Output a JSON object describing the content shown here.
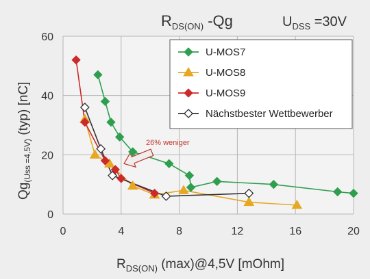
{
  "chart_data": {
    "type": "scatter",
    "title_main": "R",
    "title_sub": "DS(ON)",
    "title_rest": " -Qg",
    "udss_main": "U",
    "udss_sub": "DSS",
    "udss_rest": " =30V",
    "xlabel_main": "R",
    "xlabel_sub": "DS(ON)",
    "xlabel_rest": " (max)@4,5V [mOhm]",
    "ylabel_main": "Qg",
    "ylabel_sub": "(Uss =4,5V)",
    "ylabel_rest": " (typ) [nC]",
    "xlim": [
      0,
      20
    ],
    "ylim": [
      0,
      60
    ],
    "xticks": [
      "0",
      "4",
      "8",
      "12",
      "16",
      "20"
    ],
    "yticks": [
      "0",
      "20",
      "40",
      "60"
    ],
    "grid": true,
    "legend_position": "top-right",
    "annotation": "26% weniger",
    "annotation_color": "#c0392b",
    "series": [
      {
        "name": "U-MOS7",
        "color": "#2e9e4f",
        "marker": "diamond",
        "points": [
          [
            2.4,
            47
          ],
          [
            2.9,
            38
          ],
          [
            3.3,
            31
          ],
          [
            3.9,
            26
          ],
          [
            4.8,
            21
          ],
          [
            7.3,
            17
          ],
          [
            8.7,
            13
          ],
          [
            8.8,
            9
          ],
          [
            10.6,
            11
          ],
          [
            14.5,
            10
          ],
          [
            18.9,
            7.5
          ],
          [
            20,
            7
          ]
        ]
      },
      {
        "name": "U-MOS8",
        "color": "#e6a823",
        "marker": "triangle",
        "points": [
          [
            1.5,
            32
          ],
          [
            2.2,
            20
          ],
          [
            3.2,
            17
          ],
          [
            4.8,
            9.5
          ],
          [
            6.3,
            6.5
          ],
          [
            8.3,
            8
          ],
          [
            12.8,
            4
          ],
          [
            16.1,
            3
          ]
        ]
      },
      {
        "name": "U-MOS9",
        "color": "#cc2a2a",
        "marker": "diamond",
        "points": [
          [
            0.9,
            52
          ],
          [
            1.5,
            31
          ],
          [
            2.9,
            18
          ],
          [
            3.6,
            15
          ],
          [
            4,
            12
          ],
          [
            6.3,
            7
          ]
        ]
      },
      {
        "name": "Nächstbester Wettbewerber",
        "color": "#333333",
        "marker": "open-diamond",
        "points": [
          [
            1.5,
            36
          ],
          [
            2.6,
            22
          ],
          [
            3.4,
            13
          ],
          [
            7.1,
            6
          ],
          [
            12.8,
            7
          ]
        ]
      }
    ]
  }
}
